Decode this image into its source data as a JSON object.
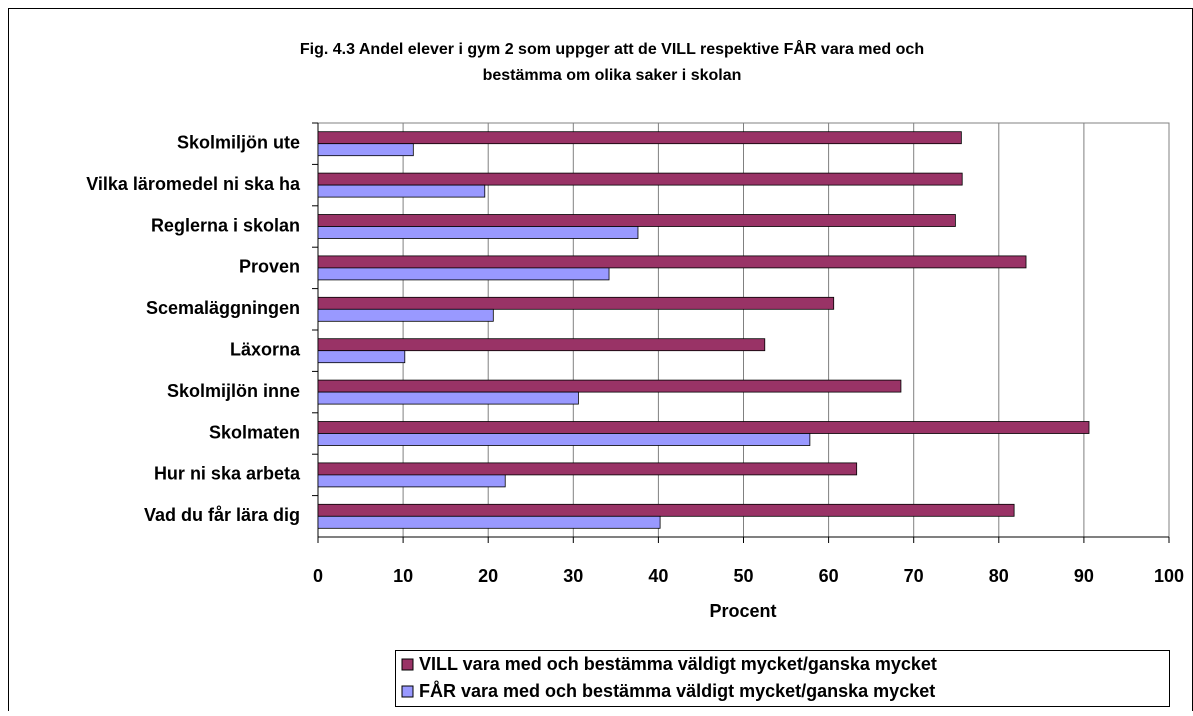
{
  "chart_data": {
    "type": "hbar",
    "title": [
      "Fig. 4.3 Andel elever i gym 2 som uppger att de VILL respektive FÅR vara med och",
      "bestämma om olika saker i skolan"
    ],
    "xlabel": "Procent",
    "categories": [
      "Skolmiljön ute",
      "Vilka läromedel ni ska ha",
      "Reglerna i skolan",
      "Proven",
      "Scemaläggningen",
      "Läxorna",
      "Skolmijlön inne",
      "Skolmaten",
      "Hur ni ska arbeta",
      "Vad du får lära dig"
    ],
    "series": [
      {
        "name": "VILL vara med och bestämma väldigt mycket/ganska mycket",
        "color": "#993366",
        "values": [
          75.6,
          75.7,
          74.9,
          83.2,
          60.6,
          52.5,
          68.5,
          90.6,
          63.3,
          81.8
        ]
      },
      {
        "name": "FÅR vara med och bestämma väldigt mycket/ganska mycket",
        "color": "#9999ff",
        "values": [
          11.2,
          19.6,
          37.6,
          34.2,
          20.6,
          10.2,
          30.6,
          57.8,
          22.0,
          40.2
        ]
      }
    ],
    "xlim": [
      0,
      100
    ],
    "xticks": [
      0,
      10,
      20,
      30,
      40,
      50,
      60,
      70,
      80,
      90,
      100
    ],
    "grid": true,
    "legend": "bottom"
  }
}
